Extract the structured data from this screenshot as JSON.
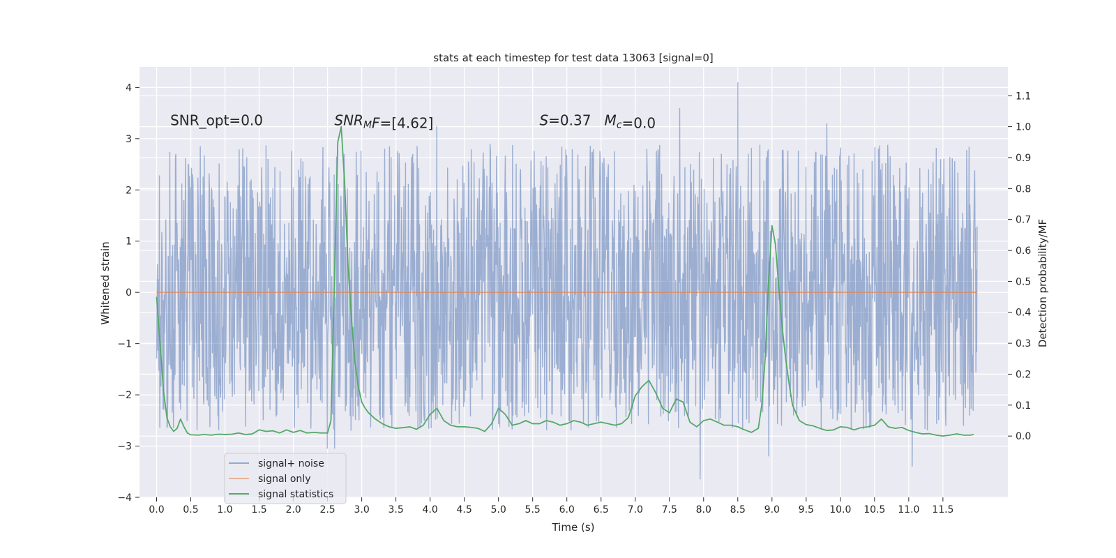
{
  "chart_data": {
    "type": "line",
    "title": "stats at each timestep for test data 13063 [signal=0]",
    "xlabel": "Time (s)",
    "ylabel": "Whitened strain",
    "y2label": "Detection probability/MF",
    "xlim": [
      -0.25,
      12.45
    ],
    "ylim": [
      -4.0,
      4.4
    ],
    "y2lim": [
      -0.198,
      1.193
    ],
    "xticks": [
      0.0,
      0.5,
      1.0,
      1.5,
      2.0,
      2.5,
      3.0,
      3.5,
      4.0,
      4.5,
      5.0,
      5.5,
      6.0,
      6.5,
      7.0,
      7.5,
      8.0,
      8.5,
      9.0,
      9.5,
      10.0,
      10.5,
      11.0,
      11.5
    ],
    "xtick_labels": [
      "0.0",
      "0.5",
      "1.0",
      "1.5",
      "2.0",
      "2.5",
      "3.0",
      "3.5",
      "4.0",
      "4.5",
      "5.0",
      "5.5",
      "6.0",
      "6.5",
      "7.0",
      "7.5",
      "8.0",
      "8.5",
      "9.0",
      "9.5",
      "10.0",
      "10.5",
      "11.0",
      "11.5"
    ],
    "yticks": [
      -4,
      -3,
      -2,
      -1,
      0,
      1,
      2,
      3,
      4
    ],
    "ytick_labels": [
      "−4",
      "−3",
      "−2",
      "−1",
      "0",
      "1",
      "2",
      "3",
      "4"
    ],
    "y2ticks": [
      0.0,
      0.1,
      0.2,
      0.3,
      0.4,
      0.5,
      0.6,
      0.7,
      0.8,
      0.9,
      1.0,
      1.1
    ],
    "y2tick_labels": [
      "0.0",
      "0.1",
      "0.2",
      "0.3",
      "0.4",
      "0.5",
      "0.6",
      "0.7",
      "0.8",
      "0.9",
      "1.0",
      "1.1"
    ],
    "grid": true,
    "legend_position": "lower-left",
    "annotations": [
      {
        "parts": [
          {
            "text": "SNR_opt=0.0",
            "italic": false
          }
        ],
        "x": 0.2,
        "y2": 1.0
      },
      {
        "parts": [
          {
            "text": "SNR",
            "italic": true
          },
          {
            "text": "M",
            "italic": true,
            "sub": true
          },
          {
            "text": "F",
            "italic": true
          },
          {
            "text": "=[4.62]",
            "italic": false
          }
        ],
        "x": 2.6,
        "y2": 1.0
      },
      {
        "parts": [
          {
            "text": "S",
            "italic": true
          },
          {
            "text": "=0.37   ",
            "italic": false
          },
          {
            "text": "M",
            "italic": true
          },
          {
            "text": "c",
            "italic": true,
            "sub": true
          },
          {
            "text": "=0.0",
            "italic": false
          }
        ],
        "x": 5.6,
        "y2": 1.0
      }
    ],
    "series": [
      {
        "name": "signal+ noise",
        "color": "#4c72b0",
        "axis": "left",
        "kind": "noise",
        "x_range": [
          0.0,
          12.0
        ],
        "samples": 2048,
        "band": [
          -1.55,
          1.45
        ],
        "spike_up_max": 2.9,
        "spike_down_min": -2.7,
        "peaks": [
          {
            "x": 0.5,
            "y": 2.05
          },
          {
            "x": 1.6,
            "y": 2.87
          },
          {
            "x": 2.5,
            "y": -3.05
          },
          {
            "x": 2.6,
            "y": -3.05
          },
          {
            "x": 4.1,
            "y": 3.25
          },
          {
            "x": 7.65,
            "y": 3.6
          },
          {
            "x": 7.95,
            "y": -3.65
          },
          {
            "x": 8.5,
            "y": 4.1
          },
          {
            "x": 8.95,
            "y": -3.2
          },
          {
            "x": 9.8,
            "y": 3.3
          },
          {
            "x": 11.05,
            "y": -3.4
          },
          {
            "x": 11.4,
            "y": 2.82
          }
        ]
      },
      {
        "name": "signal only",
        "color": "#dd8452",
        "axis": "left",
        "x": [
          0.0,
          12.0
        ],
        "values": [
          0.0,
          0.0
        ]
      },
      {
        "name": "signal statistics",
        "color": "#55a868",
        "axis": "right",
        "x": [
          0.0,
          0.05,
          0.1,
          0.15,
          0.2,
          0.25,
          0.3,
          0.35,
          0.4,
          0.45,
          0.5,
          0.6,
          0.7,
          0.8,
          0.9,
          1.0,
          1.1,
          1.2,
          1.3,
          1.4,
          1.5,
          1.6,
          1.7,
          1.8,
          1.9,
          2.0,
          2.1,
          2.2,
          2.3,
          2.4,
          2.5,
          2.55,
          2.6,
          2.65,
          2.7,
          2.75,
          2.8,
          2.85,
          2.9,
          2.95,
          3.0,
          3.05,
          3.1,
          3.2,
          3.3,
          3.4,
          3.5,
          3.6,
          3.7,
          3.8,
          3.9,
          4.0,
          4.1,
          4.2,
          4.3,
          4.4,
          4.5,
          4.6,
          4.7,
          4.8,
          4.9,
          5.0,
          5.1,
          5.2,
          5.3,
          5.4,
          5.5,
          5.6,
          5.7,
          5.8,
          5.9,
          6.0,
          6.1,
          6.2,
          6.3,
          6.4,
          6.5,
          6.6,
          6.7,
          6.8,
          6.9,
          7.0,
          7.1,
          7.2,
          7.3,
          7.4,
          7.5,
          7.6,
          7.7,
          7.8,
          7.9,
          8.0,
          8.1,
          8.2,
          8.3,
          8.4,
          8.5,
          8.6,
          8.7,
          8.8,
          8.85,
          8.9,
          8.95,
          9.0,
          9.05,
          9.1,
          9.15,
          9.2,
          9.25,
          9.3,
          9.4,
          9.5,
          9.6,
          9.7,
          9.8,
          9.9,
          10.0,
          10.1,
          10.2,
          10.3,
          10.4,
          10.5,
          10.6,
          10.7,
          10.8,
          10.9,
          11.0,
          11.1,
          11.2,
          11.3,
          11.4,
          11.5,
          11.6,
          11.7,
          11.8,
          11.9,
          11.95
        ],
        "values": [
          0.45,
          0.3,
          0.15,
          0.06,
          0.03,
          0.015,
          0.025,
          0.055,
          0.03,
          0.01,
          0.004,
          0.003,
          0.005,
          0.003,
          0.006,
          0.005,
          0.006,
          0.01,
          0.005,
          0.007,
          0.02,
          0.015,
          0.017,
          0.01,
          0.02,
          0.012,
          0.018,
          0.01,
          0.012,
          0.01,
          0.01,
          0.05,
          0.5,
          0.95,
          1.0,
          0.82,
          0.55,
          0.38,
          0.24,
          0.16,
          0.11,
          0.09,
          0.075,
          0.055,
          0.04,
          0.03,
          0.025,
          0.027,
          0.03,
          0.022,
          0.035,
          0.07,
          0.09,
          0.05,
          0.035,
          0.03,
          0.03,
          0.028,
          0.025,
          0.015,
          0.04,
          0.09,
          0.07,
          0.035,
          0.04,
          0.05,
          0.04,
          0.04,
          0.05,
          0.045,
          0.035,
          0.04,
          0.05,
          0.045,
          0.035,
          0.04,
          0.045,
          0.04,
          0.035,
          0.04,
          0.06,
          0.13,
          0.16,
          0.18,
          0.14,
          0.09,
          0.075,
          0.12,
          0.11,
          0.045,
          0.03,
          0.05,
          0.055,
          0.045,
          0.035,
          0.035,
          0.03,
          0.02,
          0.012,
          0.025,
          0.1,
          0.25,
          0.5,
          0.68,
          0.62,
          0.48,
          0.35,
          0.25,
          0.17,
          0.1,
          0.05,
          0.037,
          0.033,
          0.025,
          0.018,
          0.02,
          0.03,
          0.028,
          0.02,
          0.027,
          0.03,
          0.035,
          0.055,
          0.03,
          0.025,
          0.028,
          0.018,
          0.012,
          0.007,
          0.008,
          0.003,
          0.0,
          0.003,
          0.007,
          0.003,
          0.003,
          0.005
        ]
      }
    ]
  }
}
